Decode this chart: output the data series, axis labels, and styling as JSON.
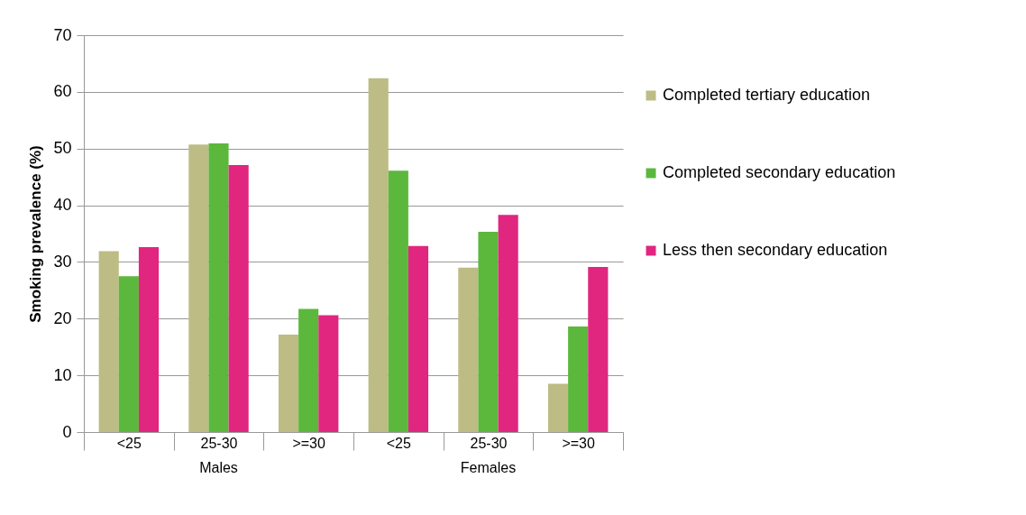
{
  "chart_data": {
    "type": "bar",
    "ylabel": "Smoking prevalence (%)",
    "categories": [
      "<25",
      "25-30",
      ">=30",
      "<25",
      "25-30",
      ">=30"
    ],
    "annotations": [
      "Males",
      "Females"
    ],
    "series": [
      {
        "name": "Completed tertiary education",
        "color": "#bcbc84",
        "values": [
          31.9,
          50.7,
          17.2,
          62.4,
          29.0,
          8.5
        ]
      },
      {
        "name": "Completed secondary education",
        "color": "#5cb83c",
        "values": [
          27.5,
          50.9,
          21.7,
          46.1,
          35.3,
          18.6
        ]
      },
      {
        "name": "Less then secondary education",
        "color": "#e0267f",
        "values": [
          32.6,
          47.1,
          20.6,
          32.8,
          38.3,
          29.1
        ]
      }
    ],
    "ylim": [
      0,
      70
    ],
    "yticks": [
      0,
      10,
      20,
      30,
      40,
      50,
      60,
      70
    ],
    "grid": "y",
    "legend": "right"
  }
}
